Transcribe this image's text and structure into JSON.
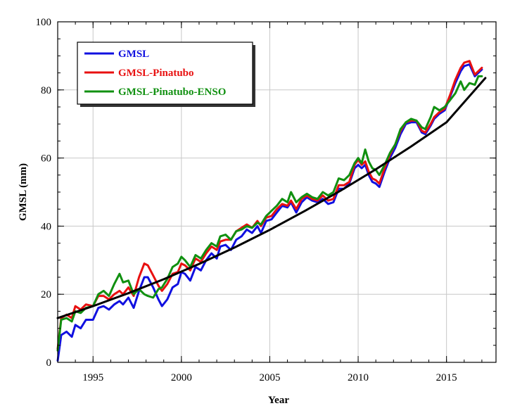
{
  "chart_data": {
    "type": "line",
    "title": "",
    "xlabel": "Year",
    "ylabel": "GMSL (mm)",
    "xlim": [
      1993,
      2017.8
    ],
    "ylim": [
      0,
      100
    ],
    "xticks": [
      1995,
      2000,
      2005,
      2010,
      2015
    ],
    "yticks": [
      0,
      20,
      40,
      60,
      80,
      100
    ],
    "grid": true,
    "legend_position": "top-left",
    "series": [
      {
        "name": "GMSL",
        "color": "#1010e0",
        "points": [
          [
            1993.0,
            0.5
          ],
          [
            1993.2,
            8
          ],
          [
            1993.5,
            9
          ],
          [
            1993.8,
            7.5
          ],
          [
            1994.0,
            11
          ],
          [
            1994.3,
            10
          ],
          [
            1994.6,
            12.5
          ],
          [
            1995.0,
            12.5
          ],
          [
            1995.3,
            16
          ],
          [
            1995.6,
            16.5
          ],
          [
            1995.9,
            15.5
          ],
          [
            1996.2,
            17
          ],
          [
            1996.5,
            18
          ],
          [
            1996.7,
            17
          ],
          [
            1997.0,
            19
          ],
          [
            1997.3,
            16
          ],
          [
            1997.6,
            21
          ],
          [
            1997.9,
            25
          ],
          [
            1998.1,
            25
          ],
          [
            1998.4,
            22
          ],
          [
            1998.7,
            18.5
          ],
          [
            1998.9,
            16.5
          ],
          [
            1999.2,
            18.5
          ],
          [
            1999.5,
            22
          ],
          [
            1999.8,
            23
          ],
          [
            2000.0,
            26.5
          ],
          [
            2000.2,
            26
          ],
          [
            2000.5,
            24
          ],
          [
            2000.8,
            28
          ],
          [
            2001.1,
            27
          ],
          [
            2001.4,
            30
          ],
          [
            2001.7,
            32
          ],
          [
            2002.0,
            30.5
          ],
          [
            2002.2,
            34
          ],
          [
            2002.5,
            34.5
          ],
          [
            2002.8,
            33
          ],
          [
            2003.1,
            36
          ],
          [
            2003.4,
            37
          ],
          [
            2003.7,
            39
          ],
          [
            2004.0,
            38
          ],
          [
            2004.3,
            40
          ],
          [
            2004.5,
            38
          ],
          [
            2004.8,
            41.5
          ],
          [
            2005.1,
            42
          ],
          [
            2005.4,
            44
          ],
          [
            2005.7,
            46
          ],
          [
            2006.0,
            45.5
          ],
          [
            2006.2,
            47
          ],
          [
            2006.5,
            44
          ],
          [
            2006.8,
            47
          ],
          [
            2007.1,
            48.5
          ],
          [
            2007.4,
            47.5
          ],
          [
            2007.7,
            47
          ],
          [
            2008.0,
            48
          ],
          [
            2008.3,
            46.5
          ],
          [
            2008.6,
            47
          ],
          [
            2008.9,
            51
          ],
          [
            2009.2,
            51
          ],
          [
            2009.5,
            52.5
          ],
          [
            2009.8,
            57
          ],
          [
            2010.0,
            58
          ],
          [
            2010.2,
            57
          ],
          [
            2010.4,
            58
          ],
          [
            2010.6,
            55
          ],
          [
            2010.8,
            53
          ],
          [
            2011.0,
            52.5
          ],
          [
            2011.2,
            51.5
          ],
          [
            2011.5,
            56
          ],
          [
            2011.8,
            60
          ],
          [
            2012.1,
            63
          ],
          [
            2012.4,
            67
          ],
          [
            2012.7,
            70
          ],
          [
            2013.0,
            70.5
          ],
          [
            2013.3,
            70.5
          ],
          [
            2013.6,
            67.5
          ],
          [
            2013.8,
            67
          ],
          [
            2014.1,
            69.5
          ],
          [
            2014.3,
            71.5
          ],
          [
            2014.6,
            73
          ],
          [
            2014.9,
            74
          ],
          [
            2015.2,
            78
          ],
          [
            2015.5,
            82
          ],
          [
            2015.8,
            85.5
          ],
          [
            2016.0,
            87
          ],
          [
            2016.3,
            87.5
          ],
          [
            2016.6,
            84
          ],
          [
            2016.8,
            85
          ],
          [
            2017.0,
            86
          ]
        ]
      },
      {
        "name": "GMSL-Pinatubo",
        "color": "#e81010",
        "points": [
          [
            1993.0,
            4
          ],
          [
            1993.2,
            13
          ],
          [
            1993.5,
            14
          ],
          [
            1993.8,
            13
          ],
          [
            1994.0,
            16.5
          ],
          [
            1994.3,
            15.5
          ],
          [
            1994.6,
            17
          ],
          [
            1995.0,
            16.5
          ],
          [
            1995.3,
            19.5
          ],
          [
            1995.6,
            19.5
          ],
          [
            1995.9,
            18.5
          ],
          [
            1996.2,
            20
          ],
          [
            1996.5,
            21
          ],
          [
            1996.7,
            20
          ],
          [
            1997.0,
            22
          ],
          [
            1997.3,
            19.5
          ],
          [
            1997.6,
            25
          ],
          [
            1997.9,
            29
          ],
          [
            1998.1,
            28.5
          ],
          [
            1998.4,
            25.5
          ],
          [
            1998.7,
            22.5
          ],
          [
            1998.9,
            21
          ],
          [
            1999.2,
            23
          ],
          [
            1999.5,
            26
          ],
          [
            1999.8,
            26.5
          ],
          [
            2000.0,
            29
          ],
          [
            2000.2,
            28.5
          ],
          [
            2000.5,
            27
          ],
          [
            2000.8,
            30.5
          ],
          [
            2001.1,
            29.5
          ],
          [
            2001.4,
            32
          ],
          [
            2001.7,
            34
          ],
          [
            2002.0,
            33
          ],
          [
            2002.2,
            35.5
          ],
          [
            2002.5,
            36
          ],
          [
            2002.8,
            36
          ],
          [
            2003.1,
            38.5
          ],
          [
            2003.4,
            39.5
          ],
          [
            2003.7,
            40.5
          ],
          [
            2004.0,
            39.5
          ],
          [
            2004.3,
            41.5
          ],
          [
            2004.5,
            40
          ],
          [
            2004.8,
            42.5
          ],
          [
            2005.1,
            43
          ],
          [
            2005.4,
            45
          ],
          [
            2005.7,
            46.5
          ],
          [
            2006.0,
            46
          ],
          [
            2006.2,
            47.5
          ],
          [
            2006.5,
            45
          ],
          [
            2006.8,
            48
          ],
          [
            2007.1,
            49
          ],
          [
            2007.4,
            48
          ],
          [
            2007.7,
            47.5
          ],
          [
            2008.0,
            49
          ],
          [
            2008.3,
            47.5
          ],
          [
            2008.6,
            48
          ],
          [
            2008.9,
            52
          ],
          [
            2009.2,
            52
          ],
          [
            2009.5,
            53
          ],
          [
            2009.8,
            58
          ],
          [
            2010.0,
            59.5
          ],
          [
            2010.2,
            58
          ],
          [
            2010.4,
            59
          ],
          [
            2010.6,
            56
          ],
          [
            2010.8,
            54
          ],
          [
            2011.0,
            53.5
          ],
          [
            2011.2,
            52.5
          ],
          [
            2011.5,
            57
          ],
          [
            2011.8,
            61
          ],
          [
            2012.1,
            64
          ],
          [
            2012.4,
            68
          ],
          [
            2012.7,
            70.5
          ],
          [
            2013.0,
            71
          ],
          [
            2013.3,
            71
          ],
          [
            2013.6,
            68
          ],
          [
            2013.8,
            67.5
          ],
          [
            2014.1,
            70
          ],
          [
            2014.3,
            72
          ],
          [
            2014.6,
            73.5
          ],
          [
            2014.9,
            74.5
          ],
          [
            2015.2,
            78.5
          ],
          [
            2015.5,
            83
          ],
          [
            2015.8,
            86.5
          ],
          [
            2016.0,
            88
          ],
          [
            2016.3,
            88.5
          ],
          [
            2016.6,
            84.5
          ],
          [
            2016.8,
            85.5
          ],
          [
            2017.0,
            86.5
          ]
        ]
      },
      {
        "name": "GMSL-Pinatubo-ENSO",
        "color": "#109010",
        "points": [
          [
            1993.0,
            3.5
          ],
          [
            1993.2,
            12.5
          ],
          [
            1993.5,
            13
          ],
          [
            1993.8,
            12
          ],
          [
            1994.0,
            15
          ],
          [
            1994.3,
            14.5
          ],
          [
            1994.6,
            16
          ],
          [
            1995.0,
            16.5
          ],
          [
            1995.3,
            20
          ],
          [
            1995.6,
            21
          ],
          [
            1995.9,
            19.5
          ],
          [
            1996.2,
            23
          ],
          [
            1996.5,
            26
          ],
          [
            1996.7,
            23.5
          ],
          [
            1997.0,
            24
          ],
          [
            1997.3,
            20
          ],
          [
            1997.6,
            21.5
          ],
          [
            1997.9,
            20
          ],
          [
            1998.1,
            19.5
          ],
          [
            1998.4,
            19
          ],
          [
            1998.7,
            21.5
          ],
          [
            1998.9,
            22
          ],
          [
            1999.2,
            24.5
          ],
          [
            1999.5,
            28
          ],
          [
            1999.8,
            29
          ],
          [
            2000.0,
            31
          ],
          [
            2000.2,
            30
          ],
          [
            2000.5,
            28
          ],
          [
            2000.8,
            31.5
          ],
          [
            2001.1,
            30.5
          ],
          [
            2001.4,
            33
          ],
          [
            2001.7,
            35
          ],
          [
            2002.0,
            34
          ],
          [
            2002.2,
            37
          ],
          [
            2002.5,
            37.5
          ],
          [
            2002.8,
            36
          ],
          [
            2003.1,
            38.5
          ],
          [
            2003.4,
            39
          ],
          [
            2003.7,
            40
          ],
          [
            2004.0,
            39.5
          ],
          [
            2004.3,
            41
          ],
          [
            2004.5,
            40.5
          ],
          [
            2004.8,
            43
          ],
          [
            2005.1,
            44.5
          ],
          [
            2005.4,
            46
          ],
          [
            2005.7,
            48
          ],
          [
            2006.0,
            47
          ],
          [
            2006.2,
            50
          ],
          [
            2006.5,
            47
          ],
          [
            2006.8,
            48.5
          ],
          [
            2007.1,
            49.5
          ],
          [
            2007.4,
            48.5
          ],
          [
            2007.7,
            48
          ],
          [
            2008.0,
            50
          ],
          [
            2008.3,
            49
          ],
          [
            2008.6,
            50
          ],
          [
            2008.9,
            54
          ],
          [
            2009.2,
            53.5
          ],
          [
            2009.5,
            55
          ],
          [
            2009.8,
            58.5
          ],
          [
            2010.0,
            60
          ],
          [
            2010.2,
            58.5
          ],
          [
            2010.4,
            62.5
          ],
          [
            2010.6,
            59
          ],
          [
            2010.8,
            57
          ],
          [
            2011.0,
            56.5
          ],
          [
            2011.2,
            55
          ],
          [
            2011.5,
            58
          ],
          [
            2011.8,
            61.5
          ],
          [
            2012.1,
            64
          ],
          [
            2012.4,
            68.5
          ],
          [
            2012.7,
            70.5
          ],
          [
            2013.0,
            71.5
          ],
          [
            2013.3,
            71
          ],
          [
            2013.6,
            69
          ],
          [
            2013.8,
            68.5
          ],
          [
            2014.1,
            72
          ],
          [
            2014.3,
            75
          ],
          [
            2014.6,
            74
          ],
          [
            2014.9,
            75
          ],
          [
            2015.2,
            77
          ],
          [
            2015.5,
            79
          ],
          [
            2015.8,
            82.5
          ],
          [
            2016.0,
            80
          ],
          [
            2016.3,
            82
          ],
          [
            2016.6,
            81.5
          ],
          [
            2016.8,
            84
          ],
          [
            2017.0,
            84
          ]
        ]
      },
      {
        "name": "",
        "color": "#000000",
        "points": [
          [
            1993.0,
            13
          ],
          [
            1995.0,
            16.5
          ],
          [
            1997.0,
            20.3
          ],
          [
            1999.0,
            24.4
          ],
          [
            2001.0,
            28.9
          ],
          [
            2003.0,
            33.7
          ],
          [
            2005.0,
            38.9
          ],
          [
            2007.0,
            44.5
          ],
          [
            2009.0,
            50.4
          ],
          [
            2011.0,
            56.7
          ],
          [
            2013.0,
            63.4
          ],
          [
            2015.0,
            70.5
          ],
          [
            2017.2,
            83.5
          ]
        ]
      }
    ]
  }
}
